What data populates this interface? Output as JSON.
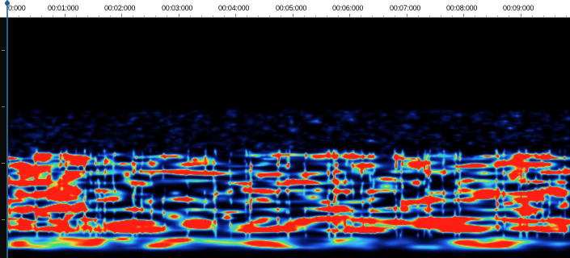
{
  "timeline": {
    "labels": [
      "0:000",
      "00:01:000",
      "00:02:000",
      "00:03:000",
      "00:04:000",
      "00:05:000",
      "00:06:000",
      "00:07:000",
      "00:08:000",
      "00:09:000"
    ]
  },
  "colors": {
    "background": "#000000",
    "ruler": "#ffffff",
    "low": "#0a1e6e",
    "mid": "#2a8cff",
    "high_green": "#39e07a",
    "high_yellow": "#f5e23a",
    "peak_red": "#ff2a1a",
    "playhead": "#2f6f9a"
  },
  "spectrogram": {
    "color_map": "blue-cyan-green-yellow-red",
    "energy_band": "lower frequencies"
  }
}
